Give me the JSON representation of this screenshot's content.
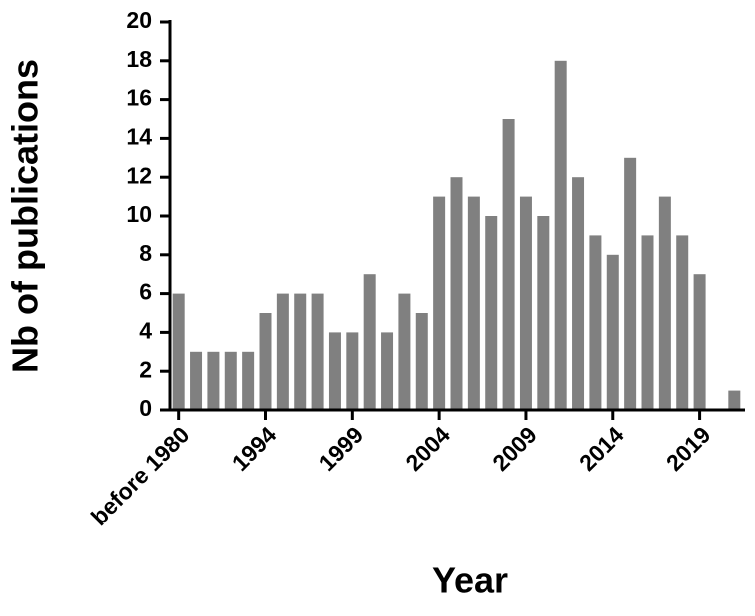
{
  "chart_data": {
    "type": "bar",
    "x_label": "Year",
    "y_label": "Nb of publications",
    "categories": [
      "before 1980",
      null,
      null,
      null,
      null,
      "1994",
      null,
      null,
      null,
      null,
      "1999",
      null,
      null,
      null,
      null,
      "2004",
      null,
      null,
      null,
      null,
      "2009",
      null,
      null,
      null,
      null,
      "2014",
      null,
      null,
      null,
      null,
      "2019",
      null,
      null
    ],
    "values": [
      6,
      3,
      3,
      3,
      3,
      5,
      6,
      6,
      6,
      4,
      4,
      7,
      4,
      6,
      5,
      11,
      12,
      11,
      10,
      15,
      11,
      10,
      18,
      12,
      9,
      8,
      13,
      9,
      11,
      9,
      7,
      0,
      1
    ],
    "color": "#808080",
    "ylim": [
      0,
      20
    ],
    "yticks": [
      0,
      2,
      4,
      6,
      8,
      10,
      12,
      14,
      16,
      18,
      20
    ],
    "grid": false
  }
}
